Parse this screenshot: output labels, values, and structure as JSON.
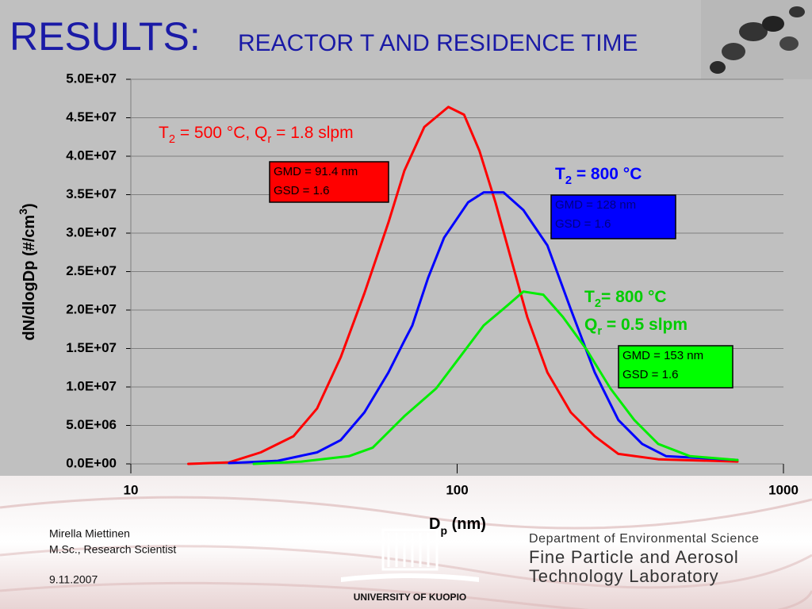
{
  "chart_data": {
    "type": "line",
    "title": "RESULTS:",
    "subtitle": "REACTOR T AND RESIDENCE TIME",
    "x_label": [
      "D",
      "p",
      " (nm)"
    ],
    "y_label": [
      "dN/dlogDp (#/cm",
      "3",
      ")"
    ],
    "xscale": "log",
    "xlim": [
      10,
      1000
    ],
    "xticks": [
      10,
      100,
      1000
    ],
    "ylim": [
      0,
      50000000
    ],
    "yticks": [
      {
        "value": 0,
        "label": "0.0E+00"
      },
      {
        "value": 5000000,
        "label": "5.0E+06"
      },
      {
        "value": 10000000,
        "label": "1.0E+07"
      },
      {
        "value": 15000000,
        "label": "1.5E+07"
      },
      {
        "value": 20000000,
        "label": "2.0E+07"
      },
      {
        "value": 25000000,
        "label": "2.5E+07"
      },
      {
        "value": 30000000,
        "label": "3.0E+07"
      },
      {
        "value": 35000000,
        "label": "3.5E+07"
      },
      {
        "value": 40000000,
        "label": "4.0E+07"
      },
      {
        "value": 45000000,
        "label": "4.5E+07"
      },
      {
        "value": 50000000,
        "label": "5.0E+07"
      }
    ],
    "grid": true,
    "series": [
      {
        "color": "#ff0000",
        "x": [
          15,
          20,
          25,
          31.5,
          37.2,
          44,
          52,
          61.6,
          68.9,
          79.3,
          94,
          105,
          117,
          131,
          147,
          164,
          189,
          223,
          264,
          312,
          413,
          723
        ],
        "values": [
          0,
          200000,
          1500000,
          3600000,
          7200000,
          13900000,
          22200000,
          31400000,
          38100000,
          43800000,
          46400000,
          45400000,
          40700000,
          34000000,
          26300000,
          19100000,
          11900000,
          6700000,
          3600000,
          1300000,
          600000,
          300000
        ]
      },
      {
        "color": "#0000ff",
        "x": [
          20,
          28.2,
          37.2,
          44,
          52,
          61.6,
          68.9,
          72.9,
          81.5,
          91.2,
          108,
          120.6,
          138.7,
          159.6,
          189,
          223,
          264,
          312,
          369,
          437,
          723
        ],
        "values": [
          100000,
          400000,
          1500000,
          3100000,
          6700000,
          11900000,
          16000000,
          18000000,
          24200000,
          29400000,
          34000000,
          35300000,
          35300000,
          33000000,
          28400000,
          20100000,
          11900000,
          5700000,
          2600000,
          1000000,
          500000
        ]
      },
      {
        "color": "#00ee00",
        "x": [
          23.8,
          33.3,
          46.6,
          55.1,
          68.9,
          86.2,
          102,
          120.6,
          142.6,
          159.6,
          183.6,
          211,
          249,
          295,
          349,
          413,
          517,
          723
        ],
        "values": [
          0,
          300000,
          1000000,
          2100000,
          6200000,
          9800000,
          13900000,
          18000000,
          20600000,
          22400000,
          22000000,
          19100000,
          14900000,
          9800000,
          5700000,
          2600000,
          1000000,
          500000
        ]
      }
    ],
    "annotations": [
      {
        "color": "#ff0000",
        "parts": [
          "T",
          "2",
          " = 500 °C, Q",
          "r",
          " = 1.8 slpm"
        ]
      },
      {
        "color": "#0000ff",
        "parts": [
          "T",
          "2",
          " = 800 °C"
        ]
      },
      {
        "color": "#00cc00",
        "parts": [
          "T",
          "2",
          "= 800 °C"
        ]
      },
      {
        "color": "#00cc00",
        "parts": [
          "Q",
          "r",
          " = 0.5 slpm"
        ]
      }
    ],
    "boxes": [
      {
        "color": "#ff0000",
        "lines": [
          "GMD = 91.4 nm",
          "GSD = 1.6"
        ]
      },
      {
        "color": "#0000ff",
        "lines": [
          "GMD = 128 nm",
          "GSD = 1.6"
        ]
      },
      {
        "color": "#00ff00",
        "lines": [
          "GMD = 153 nm",
          "GSD = 1.6"
        ]
      }
    ]
  },
  "footer": {
    "author": "Mirella Miettinen",
    "position": "M.Sc., Research Scientist",
    "date": "9.11.2007",
    "university": "UNIVERSITY OF KUOPIO",
    "department": "Department of Environmental Science",
    "lab_lines": [
      "Fine Particle and Aerosol",
      "Technology Laboratory"
    ]
  }
}
